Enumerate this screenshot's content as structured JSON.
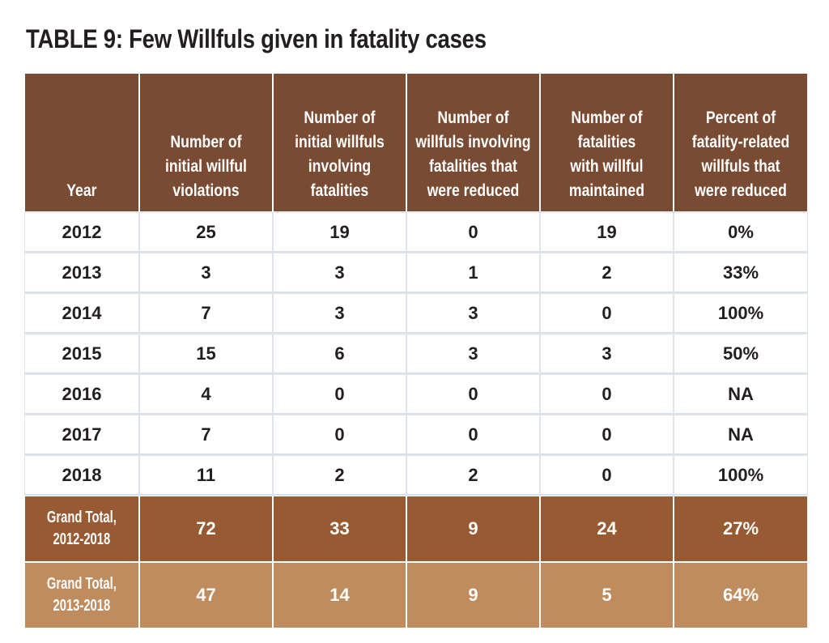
{
  "title": "TABLE 9:  Few Willfuls given in fatality cases",
  "chart_data": {
    "type": "table",
    "title": "TABLE 9:  Few Willfuls given in fatality cases",
    "columns": [
      "Year",
      "Number of initial willful violations",
      "Number of initial willfuls involving fatalities",
      "Number of willfuls involving fatalities that were reduced",
      "Number of fatalities with willful maintained",
      "Percent of fatality-related willfuls that were reduced"
    ],
    "rows": [
      [
        "2012",
        "25",
        "19",
        "0",
        "19",
        "0%"
      ],
      [
        "2013",
        "3",
        "3",
        "1",
        "2",
        "33%"
      ],
      [
        "2014",
        "7",
        "3",
        "3",
        "0",
        "100%"
      ],
      [
        "2015",
        "15",
        "6",
        "3",
        "3",
        "50%"
      ],
      [
        "2016",
        "4",
        "0",
        "0",
        "0",
        "NA"
      ],
      [
        "2017",
        "7",
        "0",
        "0",
        "0",
        "NA"
      ],
      [
        "2018",
        "11",
        "2",
        "2",
        "0",
        "100%"
      ]
    ],
    "totals": [
      {
        "label_line1": "Grand Total,",
        "label_line2": "2012-2018",
        "values": [
          "72",
          "33",
          "9",
          "24",
          "27%"
        ],
        "color": "#975a32"
      },
      {
        "label_line1": "Grand Total,",
        "label_line2": "2013-2018",
        "values": [
          "47",
          "14",
          "9",
          "5",
          "64%"
        ],
        "color": "#c08b5d"
      }
    ]
  },
  "header_lines": [
    [
      "Year"
    ],
    [
      "Number of",
      "initial willful",
      "violations"
    ],
    [
      "Number of",
      "initial willfuls",
      "involving",
      "fatalities"
    ],
    [
      "Number of",
      "willfuls involving",
      "fatalities that",
      "were reduced"
    ],
    [
      "Number of",
      "fatalities",
      "with willful",
      "maintained"
    ],
    [
      "Percent of",
      "fatality-related",
      "willfuls that",
      "were reduced"
    ]
  ],
  "colors": {
    "header": "#7a4b33",
    "total_2012_2018": "#975a32",
    "total_2013_2018": "#c08b5d",
    "text": "#231f20"
  }
}
